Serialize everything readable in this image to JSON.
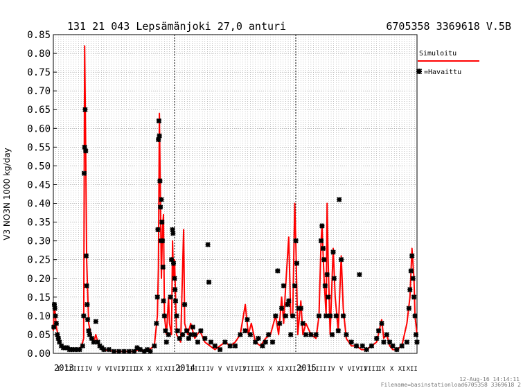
{
  "chart_data": {
    "type": "line",
    "title_left": "131 21 043 Lepsämänjoki 27,0 anturi",
    "title_right": "6705358 3369618 V.5B",
    "ylabel": "V3 NO3N 1000 kg/day",
    "ylim": [
      0,
      0.85
    ],
    "yticks": [
      "0.00",
      "0.05",
      "0.10",
      "0.15",
      "0.20",
      "0.25",
      "0.30",
      "0.35",
      "0.40",
      "0.45",
      "0.50",
      "0.55",
      "0.60",
      "0.65",
      "0.70",
      "0.75",
      "0.80",
      "0.85"
    ],
    "x_unit": "month",
    "x_start": "2013-01",
    "x_end": "2015-12",
    "years": [
      "2013",
      "2014",
      "2015"
    ],
    "month_labels": [
      "I",
      "II",
      "III",
      "IV",
      "V",
      "VI",
      "VII",
      "VIII",
      "IX",
      "X",
      "XI",
      "XII"
    ],
    "grid": true,
    "legend_placement": "top-right",
    "series": [
      {
        "name": "Simuloitu",
        "style": "line",
        "color": "#ff0000",
        "points": [
          [
            0.0,
            0.06
          ],
          [
            0.1,
            0.13
          ],
          [
            0.3,
            0.07
          ],
          [
            0.6,
            0.03
          ],
          [
            1.0,
            0.015
          ],
          [
            1.5,
            0.012
          ],
          [
            2.0,
            0.01
          ],
          [
            2.5,
            0.01
          ],
          [
            2.8,
            0.02
          ],
          [
            3.0,
            0.04
          ],
          [
            3.1,
            0.82
          ],
          [
            3.2,
            0.55
          ],
          [
            3.3,
            0.25
          ],
          [
            3.5,
            0.08
          ],
          [
            3.8,
            0.04
          ],
          [
            4.0,
            0.03
          ],
          [
            4.2,
            0.05
          ],
          [
            4.5,
            0.02
          ],
          [
            5.0,
            0.01
          ],
          [
            6.0,
            0.005
          ],
          [
            7.0,
            0.005
          ],
          [
            8.0,
            0.005
          ],
          [
            8.5,
            0.01
          ],
          [
            9.0,
            0.005
          ],
          [
            9.5,
            0.01
          ],
          [
            10.0,
            0.02
          ],
          [
            10.3,
            0.1
          ],
          [
            10.4,
            0.23
          ],
          [
            10.5,
            0.64
          ],
          [
            10.6,
            0.4
          ],
          [
            10.7,
            0.2
          ],
          [
            10.8,
            0.33
          ],
          [
            10.9,
            0.37
          ],
          [
            11.0,
            0.1
          ],
          [
            11.2,
            0.05
          ],
          [
            11.4,
            0.15
          ],
          [
            11.5,
            0.08
          ],
          [
            11.7,
            0.05
          ],
          [
            11.8,
            0.3
          ],
          [
            11.9,
            0.2
          ],
          [
            12.0,
            0.25
          ],
          [
            12.2,
            0.05
          ],
          [
            12.6,
            0.03
          ],
          [
            12.9,
            0.33
          ],
          [
            13.0,
            0.08
          ],
          [
            13.3,
            0.05
          ],
          [
            13.6,
            0.08
          ],
          [
            14.0,
            0.04
          ],
          [
            14.5,
            0.06
          ],
          [
            15.0,
            0.03
          ],
          [
            15.5,
            0.02
          ],
          [
            16.0,
            0.01
          ],
          [
            16.5,
            0.02
          ],
          [
            17.0,
            0.03
          ],
          [
            17.5,
            0.02
          ],
          [
            18.0,
            0.03
          ],
          [
            18.5,
            0.05
          ],
          [
            19.0,
            0.13
          ],
          [
            19.3,
            0.05
          ],
          [
            19.6,
            0.08
          ],
          [
            20.0,
            0.03
          ],
          [
            20.5,
            0.02
          ],
          [
            21.0,
            0.04
          ],
          [
            21.5,
            0.05
          ],
          [
            22.0,
            0.1
          ],
          [
            22.3,
            0.05
          ],
          [
            22.6,
            0.15
          ],
          [
            22.8,
            0.08
          ],
          [
            23.0,
            0.18
          ],
          [
            23.3,
            0.31
          ],
          [
            23.5,
            0.1
          ],
          [
            23.7,
            0.1
          ],
          [
            23.9,
            0.4
          ],
          [
            24.0,
            0.3
          ],
          [
            24.2,
            0.05
          ],
          [
            24.5,
            0.14
          ],
          [
            24.7,
            0.05
          ],
          [
            25.0,
            0.08
          ],
          [
            25.5,
            0.05
          ],
          [
            26.0,
            0.04
          ],
          [
            26.3,
            0.1
          ],
          [
            26.5,
            0.3
          ],
          [
            26.6,
            0.34
          ],
          [
            26.8,
            0.2
          ],
          [
            27.0,
            0.1
          ],
          [
            27.1,
            0.4
          ],
          [
            27.2,
            0.25
          ],
          [
            27.4,
            0.05
          ],
          [
            27.7,
            0.28
          ],
          [
            27.9,
            0.15
          ],
          [
            28.2,
            0.06
          ],
          [
            28.5,
            0.26
          ],
          [
            28.7,
            0.12
          ],
          [
            29.0,
            0.04
          ],
          [
            29.5,
            0.02
          ],
          [
            30.0,
            0.02
          ],
          [
            30.5,
            0.01
          ],
          [
            31.0,
            0.01
          ],
          [
            31.5,
            0.02
          ],
          [
            32.0,
            0.03
          ],
          [
            32.5,
            0.09
          ],
          [
            32.7,
            0.04
          ],
          [
            33.0,
            0.05
          ],
          [
            33.3,
            0.02
          ],
          [
            33.6,
            0.01
          ],
          [
            34.0,
            0.01
          ],
          [
            34.5,
            0.02
          ],
          [
            35.0,
            0.08
          ],
          [
            35.3,
            0.15
          ],
          [
            35.5,
            0.28
          ],
          [
            35.7,
            0.2
          ],
          [
            35.8,
            0.1
          ],
          [
            36.0,
            0.05
          ]
        ]
      },
      {
        "name": "=Havaittu",
        "style": "marker",
        "color": "#000000",
        "points": [
          [
            0.05,
            0.07
          ],
          [
            0.1,
            0.13
          ],
          [
            0.15,
            0.12
          ],
          [
            0.2,
            0.1
          ],
          [
            0.3,
            0.08
          ],
          [
            0.4,
            0.05
          ],
          [
            0.5,
            0.04
          ],
          [
            0.6,
            0.03
          ],
          [
            0.8,
            0.02
          ],
          [
            1.0,
            0.015
          ],
          [
            1.2,
            0.015
          ],
          [
            1.4,
            0.015
          ],
          [
            1.6,
            0.01
          ],
          [
            1.8,
            0.01
          ],
          [
            2.0,
            0.01
          ],
          [
            2.3,
            0.01
          ],
          [
            2.6,
            0.01
          ],
          [
            2.9,
            0.02
          ],
          [
            3.0,
            0.1
          ],
          [
            3.05,
            0.48
          ],
          [
            3.1,
            0.55
          ],
          [
            3.15,
            0.65
          ],
          [
            3.2,
            0.54
          ],
          [
            3.25,
            0.26
          ],
          [
            3.3,
            0.18
          ],
          [
            3.35,
            0.13
          ],
          [
            3.4,
            0.09
          ],
          [
            3.5,
            0.06
          ],
          [
            3.6,
            0.05
          ],
          [
            3.8,
            0.04
          ],
          [
            4.0,
            0.03
          ],
          [
            4.2,
            0.085
          ],
          [
            4.4,
            0.03
          ],
          [
            4.6,
            0.02
          ],
          [
            4.8,
            0.015
          ],
          [
            5.0,
            0.01
          ],
          [
            5.5,
            0.01
          ],
          [
            6.0,
            0.005
          ],
          [
            6.5,
            0.005
          ],
          [
            7.0,
            0.005
          ],
          [
            7.5,
            0.005
          ],
          [
            8.0,
            0.005
          ],
          [
            8.3,
            0.015
          ],
          [
            8.6,
            0.01
          ],
          [
            9.0,
            0.005
          ],
          [
            9.3,
            0.01
          ],
          [
            9.6,
            0.005
          ],
          [
            10.0,
            0.02
          ],
          [
            10.2,
            0.08
          ],
          [
            10.3,
            0.15
          ],
          [
            10.35,
            0.33
          ],
          [
            10.4,
            0.57
          ],
          [
            10.45,
            0.62
          ],
          [
            10.5,
            0.58
          ],
          [
            10.55,
            0.46
          ],
          [
            10.6,
            0.39
          ],
          [
            10.65,
            0.3
          ],
          [
            10.7,
            0.41
          ],
          [
            10.75,
            0.35
          ],
          [
            10.8,
            0.3
          ],
          [
            10.85,
            0.23
          ],
          [
            10.9,
            0.14
          ],
          [
            11.0,
            0.1
          ],
          [
            11.1,
            0.06
          ],
          [
            11.2,
            0.03
          ],
          [
            11.4,
            0.05
          ],
          [
            11.6,
            0.15
          ],
          [
            11.7,
            0.25
          ],
          [
            11.8,
            0.33
          ],
          [
            11.85,
            0.32
          ],
          [
            11.9,
            0.24
          ],
          [
            12.0,
            0.2
          ],
          [
            12.05,
            0.17
          ],
          [
            12.1,
            0.14
          ],
          [
            12.2,
            0.1
          ],
          [
            12.3,
            0.06
          ],
          [
            12.5,
            0.04
          ],
          [
            12.8,
            0.05
          ],
          [
            13.0,
            0.13
          ],
          [
            13.2,
            0.06
          ],
          [
            13.4,
            0.04
          ],
          [
            13.6,
            0.05
          ],
          [
            13.8,
            0.07
          ],
          [
            14.0,
            0.05
          ],
          [
            14.3,
            0.03
          ],
          [
            14.6,
            0.06
          ],
          [
            15.0,
            0.04
          ],
          [
            15.3,
            0.29
          ],
          [
            15.4,
            0.19
          ],
          [
            15.6,
            0.03
          ],
          [
            16.0,
            0.02
          ],
          [
            16.5,
            0.01
          ],
          [
            17.0,
            0.03
          ],
          [
            17.5,
            0.02
          ],
          [
            18.0,
            0.02
          ],
          [
            18.5,
            0.05
          ],
          [
            19.0,
            0.06
          ],
          [
            19.2,
            0.09
          ],
          [
            19.5,
            0.05
          ],
          [
            20.0,
            0.03
          ],
          [
            20.3,
            0.04
          ],
          [
            20.7,
            0.02
          ],
          [
            21.0,
            0.03
          ],
          [
            21.3,
            0.05
          ],
          [
            21.7,
            0.03
          ],
          [
            22.0,
            0.1
          ],
          [
            22.2,
            0.22
          ],
          [
            22.4,
            0.08
          ],
          [
            22.6,
            0.12
          ],
          [
            22.8,
            0.18
          ],
          [
            23.0,
            0.1
          ],
          [
            23.2,
            0.13
          ],
          [
            23.3,
            0.14
          ],
          [
            23.5,
            0.05
          ],
          [
            23.7,
            0.1
          ],
          [
            23.9,
            0.18
          ],
          [
            24.0,
            0.3
          ],
          [
            24.1,
            0.24
          ],
          [
            24.3,
            0.12
          ],
          [
            24.5,
            0.12
          ],
          [
            24.7,
            0.08
          ],
          [
            25.0,
            0.05
          ],
          [
            25.5,
            0.05
          ],
          [
            26.0,
            0.05
          ],
          [
            26.3,
            0.1
          ],
          [
            26.5,
            0.3
          ],
          [
            26.6,
            0.34
          ],
          [
            26.7,
            0.28
          ],
          [
            26.8,
            0.25
          ],
          [
            26.9,
            0.18
          ],
          [
            27.0,
            0.1
          ],
          [
            27.1,
            0.21
          ],
          [
            27.2,
            0.15
          ],
          [
            27.4,
            0.1
          ],
          [
            27.6,
            0.05
          ],
          [
            27.7,
            0.27
          ],
          [
            27.8,
            0.2
          ],
          [
            28.0,
            0.1
          ],
          [
            28.2,
            0.06
          ],
          [
            28.3,
            0.41
          ],
          [
            28.5,
            0.25
          ],
          [
            28.7,
            0.1
          ],
          [
            29.0,
            0.05
          ],
          [
            29.5,
            0.03
          ],
          [
            30.0,
            0.02
          ],
          [
            30.3,
            0.21
          ],
          [
            30.6,
            0.02
          ],
          [
            31.0,
            0.01
          ],
          [
            31.5,
            0.02
          ],
          [
            32.0,
            0.04
          ],
          [
            32.2,
            0.06
          ],
          [
            32.5,
            0.08
          ],
          [
            32.7,
            0.03
          ],
          [
            33.0,
            0.05
          ],
          [
            33.3,
            0.03
          ],
          [
            33.6,
            0.02
          ],
          [
            34.0,
            0.01
          ],
          [
            34.5,
            0.02
          ],
          [
            35.0,
            0.03
          ],
          [
            35.2,
            0.12
          ],
          [
            35.3,
            0.17
          ],
          [
            35.4,
            0.22
          ],
          [
            35.5,
            0.26
          ],
          [
            35.6,
            0.2
          ],
          [
            35.7,
            0.15
          ],
          [
            35.8,
            0.1
          ],
          [
            35.9,
            0.05
          ],
          [
            36.0,
            0.03
          ]
        ]
      }
    ]
  },
  "footer": {
    "timestamp": "12-Aug-16 14:14:11",
    "filename": "Filename=basinstationload6705358 3369618 2"
  }
}
